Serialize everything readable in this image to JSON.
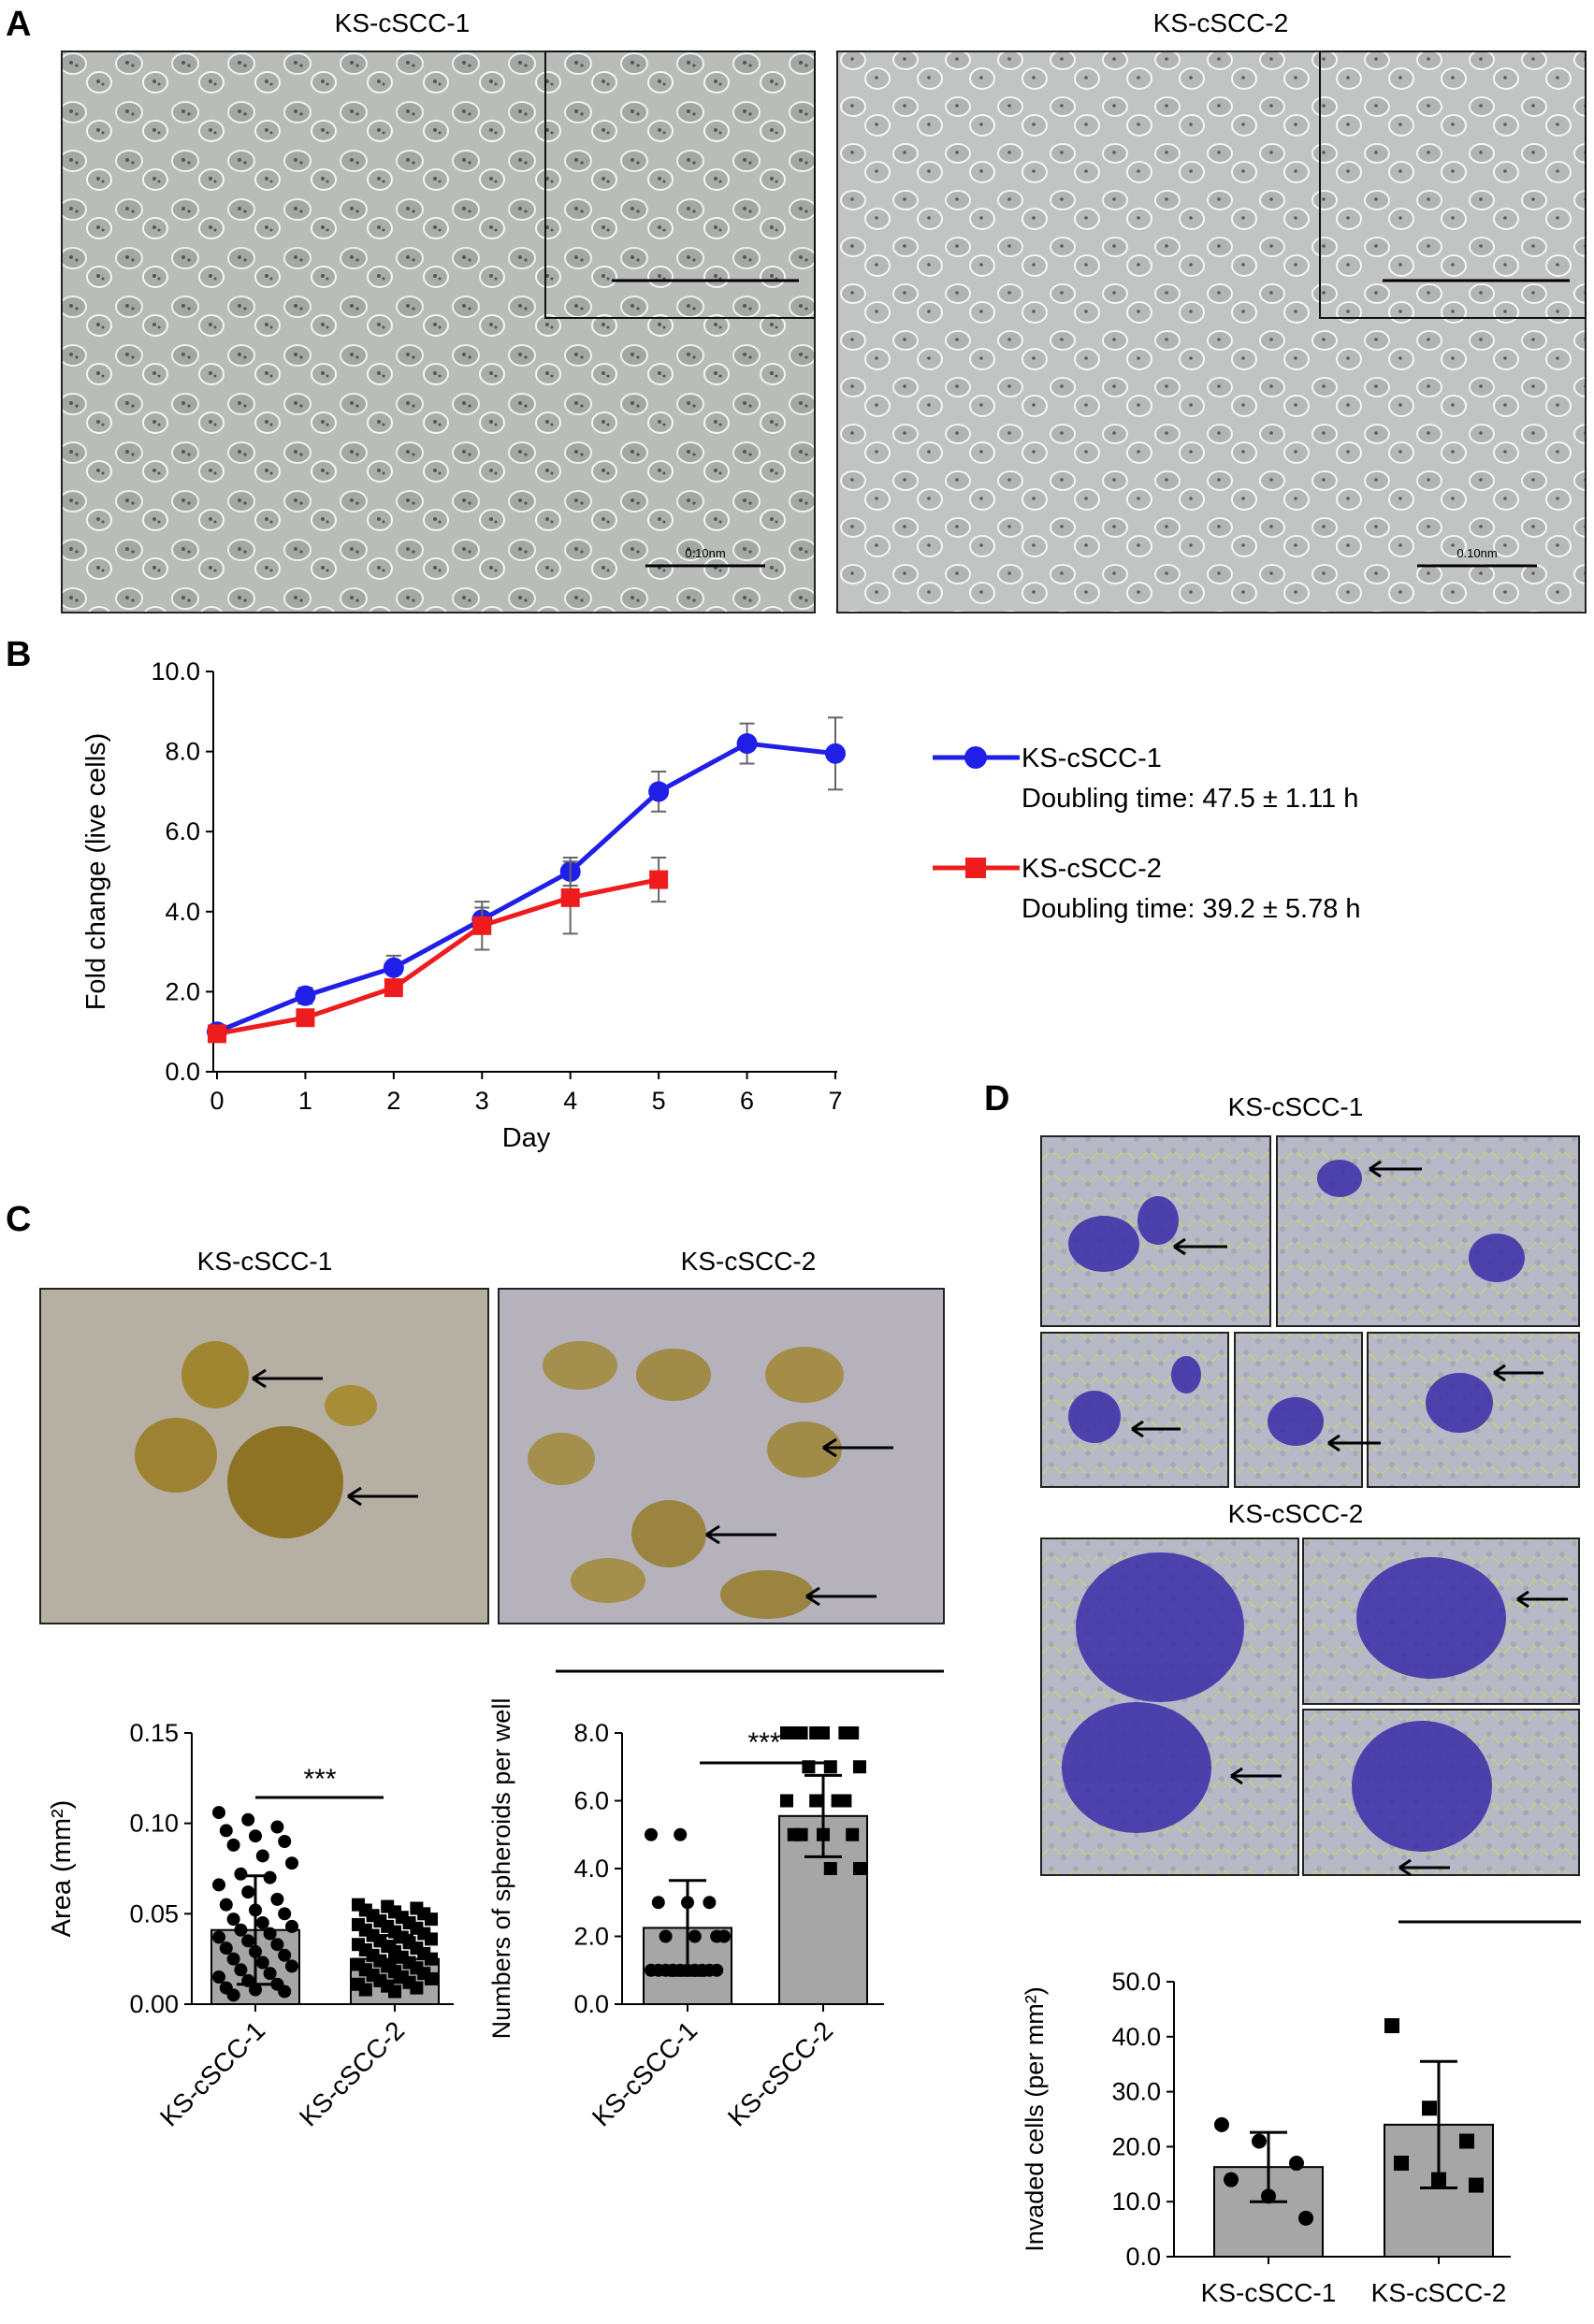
{
  "panel_labels": {
    "a": "A",
    "b": "B",
    "c": "C",
    "d": "D"
  },
  "panel_a": {
    "image_titles": [
      "KS-cSCC-1",
      "KS-cSCC-2"
    ],
    "scale_text": "0.10nm"
  },
  "panel_c": {
    "image_titles": [
      "KS-cSCC-1",
      "KS-cSCC-2"
    ]
  },
  "panel_d": {
    "image_titles": [
      "KS-cSCC-1",
      "KS-cSCC-2"
    ]
  },
  "colors": {
    "series1": "#1f1fe8",
    "series2": "#ee1c1c",
    "bar_fill": "#a6a6a6",
    "invasion_stain": "#3a2ca8"
  },
  "chart_data": [
    {
      "id": "growth",
      "type": "line",
      "xlabel": "Day",
      "ylabel": "Fold change (live cells)",
      "xlim": [
        0,
        7
      ],
      "ylim": [
        0,
        10
      ],
      "x_ticks": [
        "0",
        "1",
        "2",
        "3",
        "4",
        "5",
        "6",
        "7"
      ],
      "y_ticks": [
        "0.0",
        "2.0",
        "4.0",
        "6.0",
        "8.0",
        "10.0"
      ],
      "legend_position": "right",
      "series": [
        {
          "name": "KS-cSCC-1",
          "note": "Doubling time: 47.5 ± 1.11 h",
          "marker": "circle",
          "x": [
            0,
            1,
            2,
            3,
            4,
            5,
            6,
            7
          ],
          "y": [
            1.0,
            1.9,
            2.6,
            3.8,
            5.0,
            7.0,
            8.2,
            7.95
          ],
          "err": [
            0.1,
            0.2,
            0.3,
            0.3,
            0.35,
            0.5,
            0.5,
            0.9
          ]
        },
        {
          "name": "KS-cSCC-2",
          "note": "Doubling time: 39.2 ± 5.78 h",
          "marker": "square",
          "x": [
            0,
            1,
            2,
            3,
            4,
            5
          ],
          "y": [
            0.95,
            1.35,
            2.1,
            3.65,
            4.35,
            4.8
          ],
          "err": [
            0.1,
            0.15,
            0.2,
            0.6,
            0.9,
            0.55
          ]
        }
      ]
    },
    {
      "id": "area",
      "type": "bar",
      "ylabel": "Area (mm²)",
      "categories": [
        "KS-cSCC-1",
        "KS-cSCC-2"
      ],
      "values": [
        0.041,
        0.025
      ],
      "err": [
        0.03,
        0.013
      ],
      "ylim": [
        0,
        0.15
      ],
      "y_ticks": [
        "0.00",
        "0.05",
        "0.10",
        "0.15"
      ],
      "significance": "***",
      "points": [
        [
          0.106,
          0.102,
          0.098,
          0.096,
          0.093,
          0.09,
          0.088,
          0.082,
          0.078,
          0.072,
          0.07,
          0.066,
          0.062,
          0.058,
          0.055,
          0.052,
          0.05,
          0.047,
          0.045,
          0.043,
          0.041,
          0.039,
          0.037,
          0.035,
          0.033,
          0.031,
          0.029,
          0.027,
          0.025,
          0.023,
          0.021,
          0.019,
          0.017,
          0.015,
          0.013,
          0.011,
          0.009,
          0.008,
          0.007,
          0.005
        ],
        [
          0.055,
          0.054,
          0.053,
          0.052,
          0.051,
          0.05,
          0.049,
          0.048,
          0.047,
          0.046,
          0.045,
          0.044,
          0.043,
          0.042,
          0.041,
          0.04,
          0.039,
          0.038,
          0.037,
          0.036,
          0.035,
          0.034,
          0.033,
          0.032,
          0.031,
          0.03,
          0.029,
          0.028,
          0.027,
          0.026,
          0.025,
          0.024,
          0.023,
          0.022,
          0.021,
          0.02,
          0.019,
          0.018,
          0.017,
          0.016,
          0.015,
          0.014,
          0.013,
          0.012,
          0.011,
          0.01,
          0.009,
          0.008,
          0.007
        ]
      ]
    },
    {
      "id": "spheroids",
      "type": "bar",
      "ylabel": "Numbers of spheroids per well",
      "categories": [
        "KS-cSCC-1",
        "KS-cSCC-2"
      ],
      "values": [
        2.25,
        5.55
      ],
      "err": [
        1.4,
        1.2
      ],
      "ylim": [
        0,
        8
      ],
      "y_ticks": [
        "0.0",
        "2.0",
        "4.0",
        "6.0",
        "8.0"
      ],
      "significance": "***",
      "points": [
        [
          5,
          5,
          3,
          3,
          3,
          2,
          2,
          2,
          2,
          1,
          1,
          1,
          1,
          1,
          1,
          1,
          1,
          1,
          1
        ],
        [
          8,
          8,
          8,
          8,
          8,
          8,
          8,
          7,
          7,
          7,
          6,
          6,
          6,
          6,
          5,
          5,
          5,
          5,
          4,
          4
        ]
      ]
    },
    {
      "id": "invasion",
      "type": "bar",
      "ylabel": "Invaded cells (per mm²)",
      "categories": [
        "KS-cSCC-1",
        "KS-cSCC-2"
      ],
      "values": [
        16.3,
        24.0
      ],
      "err": [
        6.3,
        11.5
      ],
      "ylim": [
        0,
        50
      ],
      "y_ticks": [
        "0.0",
        "10.0",
        "20.0",
        "30.0",
        "40.0",
        "50.0"
      ],
      "points": [
        [
          24,
          21,
          17,
          14,
          11,
          7
        ],
        [
          42,
          27,
          21,
          17,
          14,
          13
        ]
      ]
    }
  ]
}
